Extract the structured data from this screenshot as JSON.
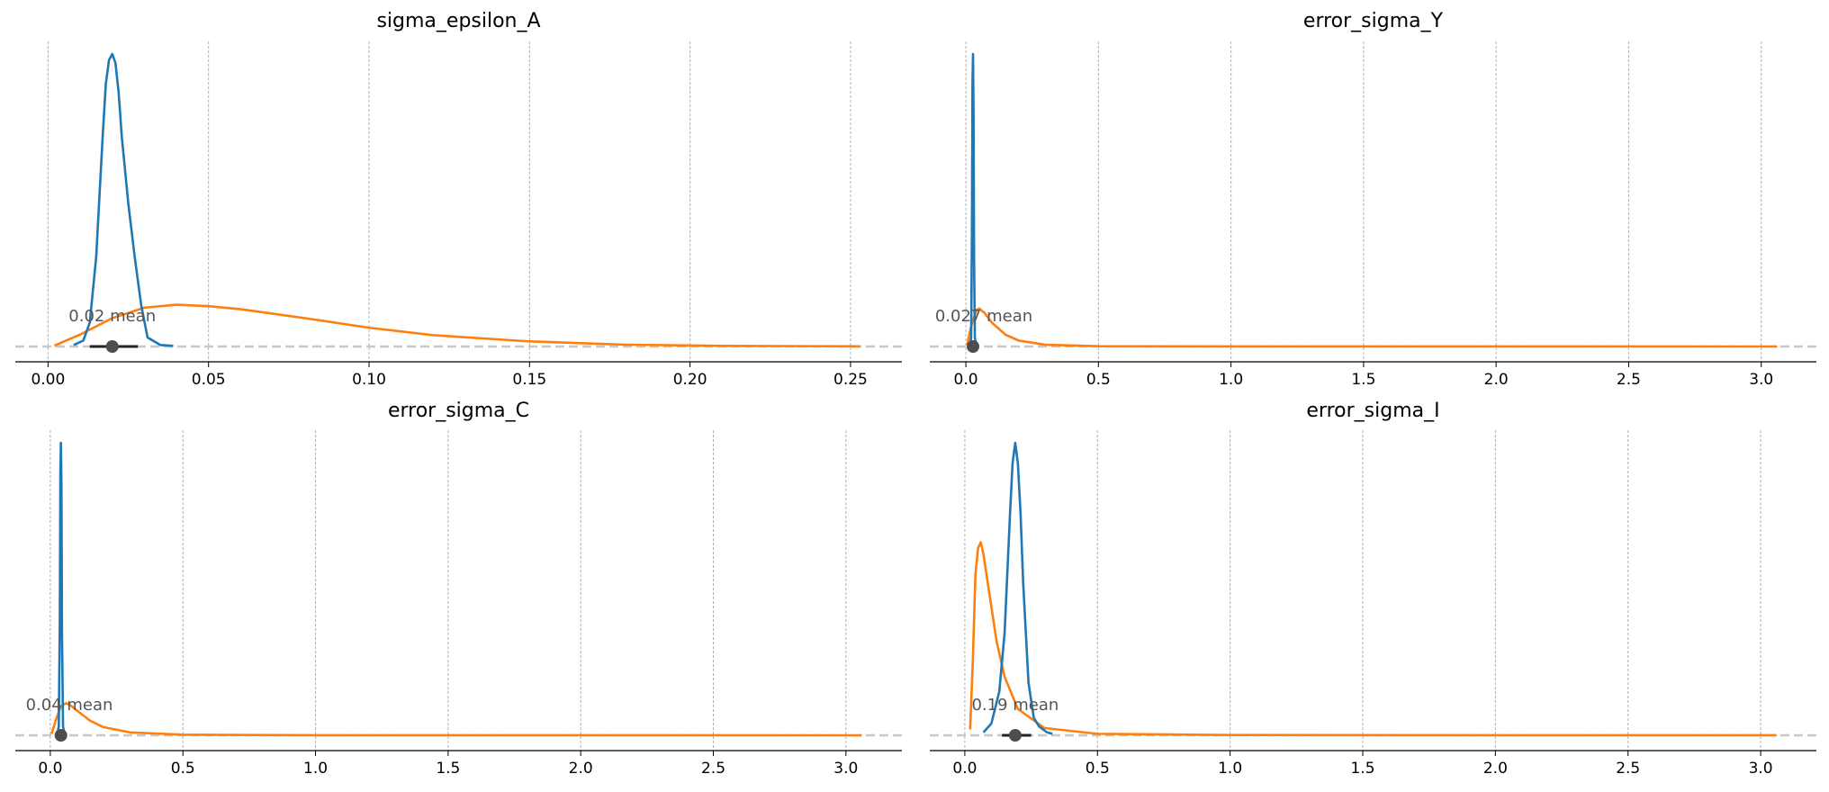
{
  "chart_data": [
    {
      "type": "density",
      "title": "sigma_epsilon_A",
      "xlim": [
        -0.0102,
        0.266
      ],
      "ylim": [
        0,
        98
      ],
      "xticks": [
        {
          "value": 0,
          "label": "0.00"
        },
        0.05,
        {
          "value": 0.1,
          "label": "0.10"
        },
        0.15,
        {
          "value": 0.2,
          "label": "0.20"
        },
        0.25
      ],
      "grid": true,
      "series": [
        {
          "color": "#1f77b4",
          "x": [
            0.008,
            0.011,
            0.013,
            0.015,
            0.017,
            0.018,
            0.019,
            0.02,
            0.021,
            0.022,
            0.023,
            0.025,
            0.027,
            0.029,
            0.031,
            0.035,
            0.039
          ],
          "values": [
            0.5,
            2,
            8,
            30,
            70,
            88,
            96,
            98,
            95,
            85,
            70,
            48,
            30,
            14,
            3,
            0.5,
            0.2
          ]
        },
        {
          "color": "#ff7f0e",
          "x": [
            0.002,
            0.01,
            0.02,
            0.03,
            0.04,
            0.05,
            0.06,
            0.08,
            0.1,
            0.12,
            0.15,
            0.18,
            0.21,
            0.253
          ],
          "values": [
            0.3,
            4,
            9.5,
            13,
            14,
            13.5,
            12.5,
            9.5,
            6.3,
            3.8,
            1.7,
            0.6,
            0.2,
            0.05
          ]
        }
      ],
      "mean": 0.02,
      "mean_label": "0.02 mean",
      "hdi": [
        0.013,
        0.028
      ]
    },
    {
      "type": "density",
      "title": "error_sigma_Y",
      "xlim": [
        -0.136,
        3.208
      ],
      "ylim": [
        0,
        100
      ],
      "xticks": [
        {
          "value": 0,
          "label": "0.0"
        },
        0.5,
        {
          "value": 1,
          "label": "1.0"
        },
        1.5,
        {
          "value": 2,
          "label": "2.0"
        },
        2.5,
        {
          "value": 3,
          "label": "3.0"
        }
      ],
      "grid": true,
      "series": [
        {
          "color": "#1f77b4",
          "x": [
            0.015,
            0.02,
            0.023,
            0.025,
            0.027,
            0.029,
            0.031,
            0.034,
            0.04
          ],
          "values": [
            0,
            3,
            40,
            90,
            100,
            80,
            30,
            3,
            0
          ]
        },
        {
          "color": "#ff7f0e",
          "x": [
            0.005,
            0.02,
            0.04,
            0.05,
            0.07,
            0.1,
            0.15,
            0.2,
            0.3,
            0.5,
            1.0,
            2.0,
            3.06
          ],
          "values": [
            0.5,
            7,
            12.5,
            13,
            11.5,
            8,
            4,
            2,
            0.6,
            0.1,
            0.02,
            0.005,
            0.002
          ]
        }
      ],
      "mean": 0.027,
      "mean_label": "0.027 mean",
      "hdi": [
        0.022,
        0.032
      ]
    },
    {
      "type": "density",
      "title": "error_sigma_C",
      "xlim": [
        -0.132,
        3.211
      ],
      "ylim": [
        0,
        100
      ],
      "xticks": [
        {
          "value": 0,
          "label": "0.0"
        },
        0.5,
        {
          "value": 1,
          "label": "1.0"
        },
        1.5,
        {
          "value": 2,
          "label": "2.0"
        },
        2.5,
        {
          "value": 3,
          "label": "3.0"
        }
      ],
      "grid": true,
      "series": [
        {
          "color": "#1f77b4",
          "x": [
            0.025,
            0.032,
            0.036,
            0.038,
            0.04,
            0.042,
            0.044,
            0.048,
            0.055
          ],
          "values": [
            0,
            3,
            40,
            90,
            100,
            85,
            35,
            3,
            0
          ]
        },
        {
          "color": "#ff7f0e",
          "x": [
            0.005,
            0.02,
            0.04,
            0.06,
            0.08,
            0.1,
            0.15,
            0.2,
            0.3,
            0.5,
            1.0,
            2.0,
            3.06
          ],
          "values": [
            0.5,
            5,
            10,
            11,
            10,
            8.5,
            5,
            2.8,
            1,
            0.2,
            0.03,
            0.005,
            0.002
          ]
        }
      ],
      "mean": 0.04,
      "mean_label": "0.04 mean",
      "hdi": [
        0.035,
        0.045
      ]
    },
    {
      "type": "density",
      "title": "error_sigma_I",
      "xlim": [
        -0.132,
        3.21
      ],
      "ylim": [
        0,
        10
      ],
      "xticks": [
        {
          "value": 0,
          "label": "0.0"
        },
        0.5,
        {
          "value": 1,
          "label": "1.0"
        },
        1.5,
        {
          "value": 2,
          "label": "2.0"
        },
        2.5,
        {
          "value": 3,
          "label": "3.0"
        }
      ],
      "grid": true,
      "series": [
        {
          "color": "#1f77b4",
          "x": [
            0.07,
            0.1,
            0.13,
            0.15,
            0.17,
            0.18,
            0.19,
            0.2,
            0.21,
            0.22,
            0.24,
            0.26,
            0.28,
            0.31,
            0.33
          ],
          "values": [
            0.1,
            0.4,
            1.5,
            3.5,
            7.5,
            9.3,
            10,
            9.3,
            7.6,
            5.2,
            1.8,
            0.6,
            0.3,
            0.1,
            0.05
          ]
        },
        {
          "color": "#ff7f0e",
          "x": [
            0.02,
            0.03,
            0.04,
            0.05,
            0.06,
            0.07,
            0.09,
            0.12,
            0.15,
            0.2,
            0.3,
            0.5,
            1.0,
            2.0,
            3.06
          ],
          "values": [
            0.2,
            2.5,
            5.5,
            6.4,
            6.6,
            6.2,
            5,
            3.2,
            2,
            0.9,
            0.25,
            0.05,
            0.01,
            0.002,
            0.001
          ]
        }
      ],
      "mean": 0.19,
      "mean_label": "0.19 mean",
      "hdi": [
        0.14,
        0.25
      ]
    }
  ]
}
